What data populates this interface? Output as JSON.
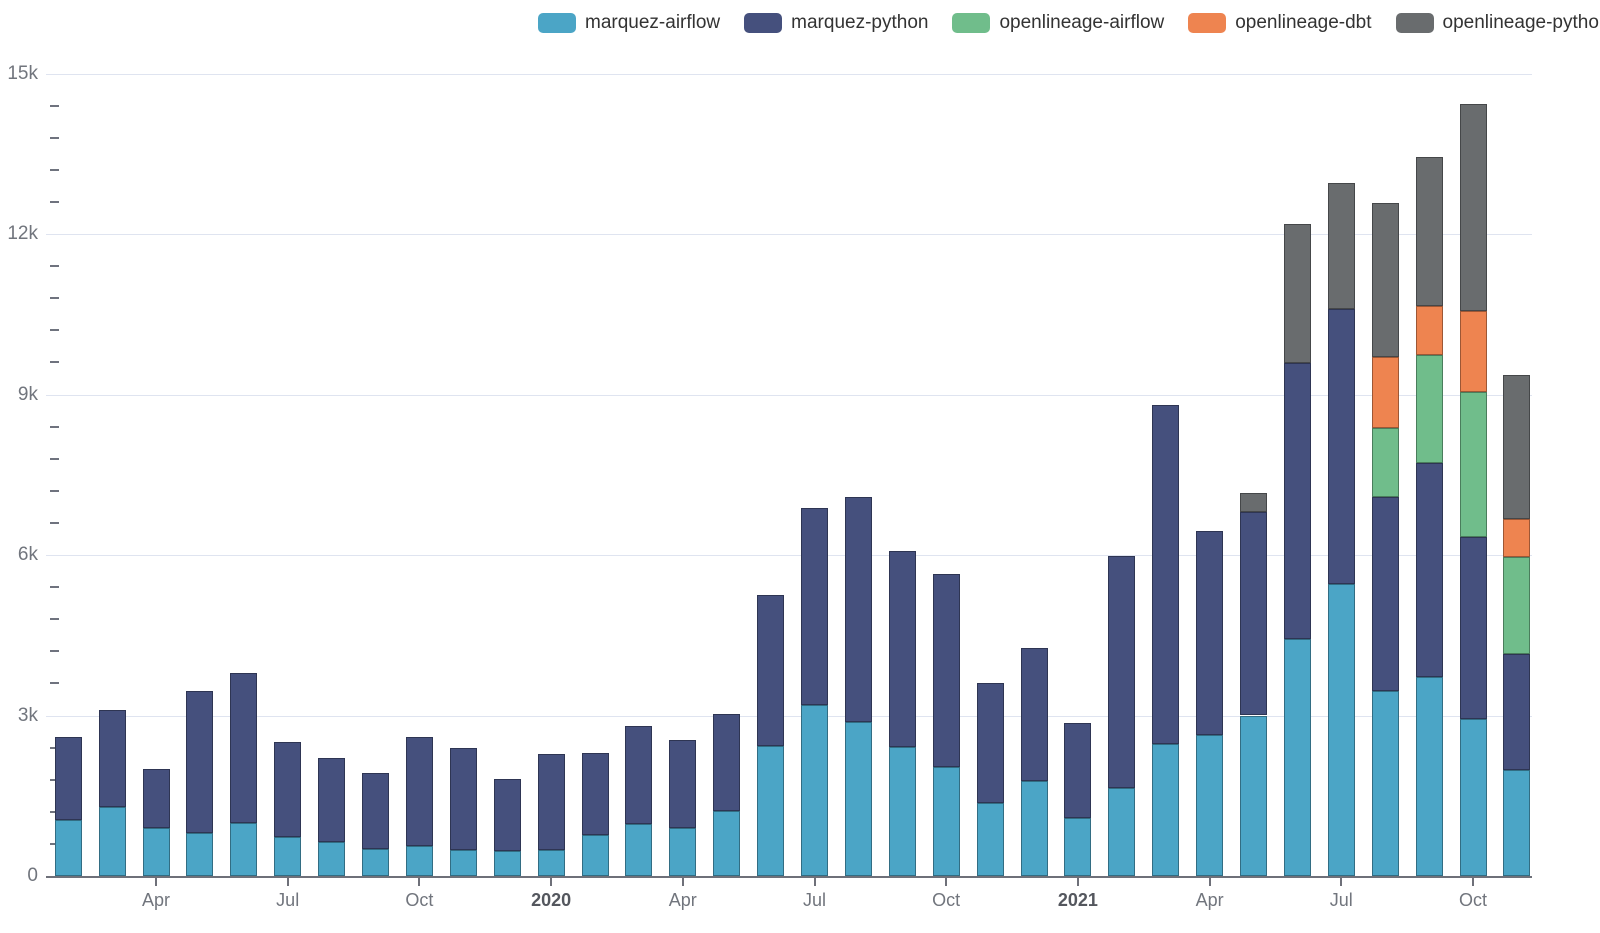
{
  "chart_data": {
    "type": "bar",
    "stacked": true,
    "title": "",
    "xlabel": "",
    "ylabel": "",
    "ylim": [
      0,
      15000
    ],
    "grid": true,
    "legend_position": "top",
    "months": [
      "Feb 2019",
      "Mar 2019",
      "Apr 2019",
      "May 2019",
      "Jun 2019",
      "Jul 2019",
      "Aug 2019",
      "Sep 2019",
      "Oct 2019",
      "Nov 2019",
      "Dec 2019",
      "Jan 2020",
      "Feb 2020",
      "Mar 2020",
      "Apr 2020",
      "May 2020",
      "Jun 2020",
      "Jul 2020",
      "Aug 2020",
      "Sep 2020",
      "Oct 2020",
      "Nov 2020",
      "Dec 2020",
      "Jan 2021",
      "Feb 2021",
      "Mar 2021",
      "Apr 2021",
      "May 2021",
      "Jun 2021",
      "Jul 2021",
      "Aug 2021",
      "Sep 2021",
      "Oct 2021",
      "Nov 2021"
    ],
    "y_ticks": [
      {
        "value": 0,
        "label": "0"
      },
      {
        "value": 3000,
        "label": "3k"
      },
      {
        "value": 6000,
        "label": "6k"
      },
      {
        "value": 9000,
        "label": "9k"
      },
      {
        "value": 12000,
        "label": "12k"
      },
      {
        "value": 15000,
        "label": "15k"
      }
    ],
    "y_minor_tick_step": 600,
    "x_ticks": [
      {
        "month_index": 2,
        "label": "Apr",
        "bold": false
      },
      {
        "month_index": 5,
        "label": "Jul",
        "bold": false
      },
      {
        "month_index": 8,
        "label": "Oct",
        "bold": false
      },
      {
        "month_index": 11,
        "label": "2020",
        "bold": true
      },
      {
        "month_index": 14,
        "label": "Apr",
        "bold": false
      },
      {
        "month_index": 17,
        "label": "Jul",
        "bold": false
      },
      {
        "month_index": 20,
        "label": "Oct",
        "bold": false
      },
      {
        "month_index": 23,
        "label": "2021",
        "bold": true
      },
      {
        "month_index": 26,
        "label": "Apr",
        "bold": false
      },
      {
        "month_index": 29,
        "label": "Jul",
        "bold": false
      },
      {
        "month_index": 32,
        "label": "Oct",
        "bold": false
      }
    ],
    "series": [
      {
        "name": "marquez-airflow",
        "color": "#4BA5C6",
        "values": [
          1050,
          1290,
          900,
          800,
          990,
          730,
          640,
          500,
          560,
          490,
          470,
          490,
          770,
          970,
          900,
          1210,
          2430,
          3200,
          2880,
          2410,
          2040,
          1360,
          1780,
          1080,
          1650,
          2470,
          2640,
          3000,
          4430,
          5460,
          3460,
          3720,
          2940,
          1980
        ]
      },
      {
        "name": "marquez-python",
        "color": "#45507D",
        "values": [
          1550,
          1810,
          1100,
          2650,
          2810,
          1770,
          1560,
          1420,
          2040,
          1910,
          1340,
          1790,
          1530,
          1830,
          1650,
          1820,
          2820,
          3680,
          4200,
          3670,
          3610,
          2250,
          2480,
          1780,
          4330,
          6330,
          3810,
          3800,
          5160,
          5140,
          3620,
          4000,
          3400,
          2170
        ]
      },
      {
        "name": "openlineage-airflow",
        "color": "#70BD8B",
        "values": [
          0,
          0,
          0,
          0,
          0,
          0,
          0,
          0,
          0,
          0,
          0,
          0,
          0,
          0,
          0,
          0,
          0,
          0,
          0,
          0,
          0,
          0,
          0,
          0,
          0,
          0,
          0,
          0,
          0,
          0,
          1290,
          2020,
          2710,
          1810
        ]
      },
      {
        "name": "openlineage-dbt",
        "color": "#EE8450",
        "values": [
          0,
          0,
          0,
          0,
          0,
          0,
          0,
          0,
          0,
          0,
          0,
          0,
          0,
          0,
          0,
          0,
          0,
          0,
          0,
          0,
          0,
          0,
          0,
          0,
          0,
          0,
          0,
          0,
          0,
          0,
          1330,
          920,
          1510,
          710
        ]
      },
      {
        "name": "openlineage-python",
        "color": "#696C6E",
        "values": [
          0,
          0,
          0,
          0,
          0,
          0,
          0,
          0,
          0,
          0,
          0,
          0,
          0,
          0,
          0,
          0,
          0,
          0,
          0,
          0,
          0,
          0,
          0,
          0,
          0,
          0,
          0,
          360,
          2600,
          2350,
          2880,
          2780,
          3870,
          2690
        ]
      }
    ],
    "colors": {
      "gridline": "#dfe4f0",
      "axis": "#6e7079",
      "axis_label": "#71757d",
      "year_label": "#54575e",
      "legend_text": "#333333"
    }
  }
}
